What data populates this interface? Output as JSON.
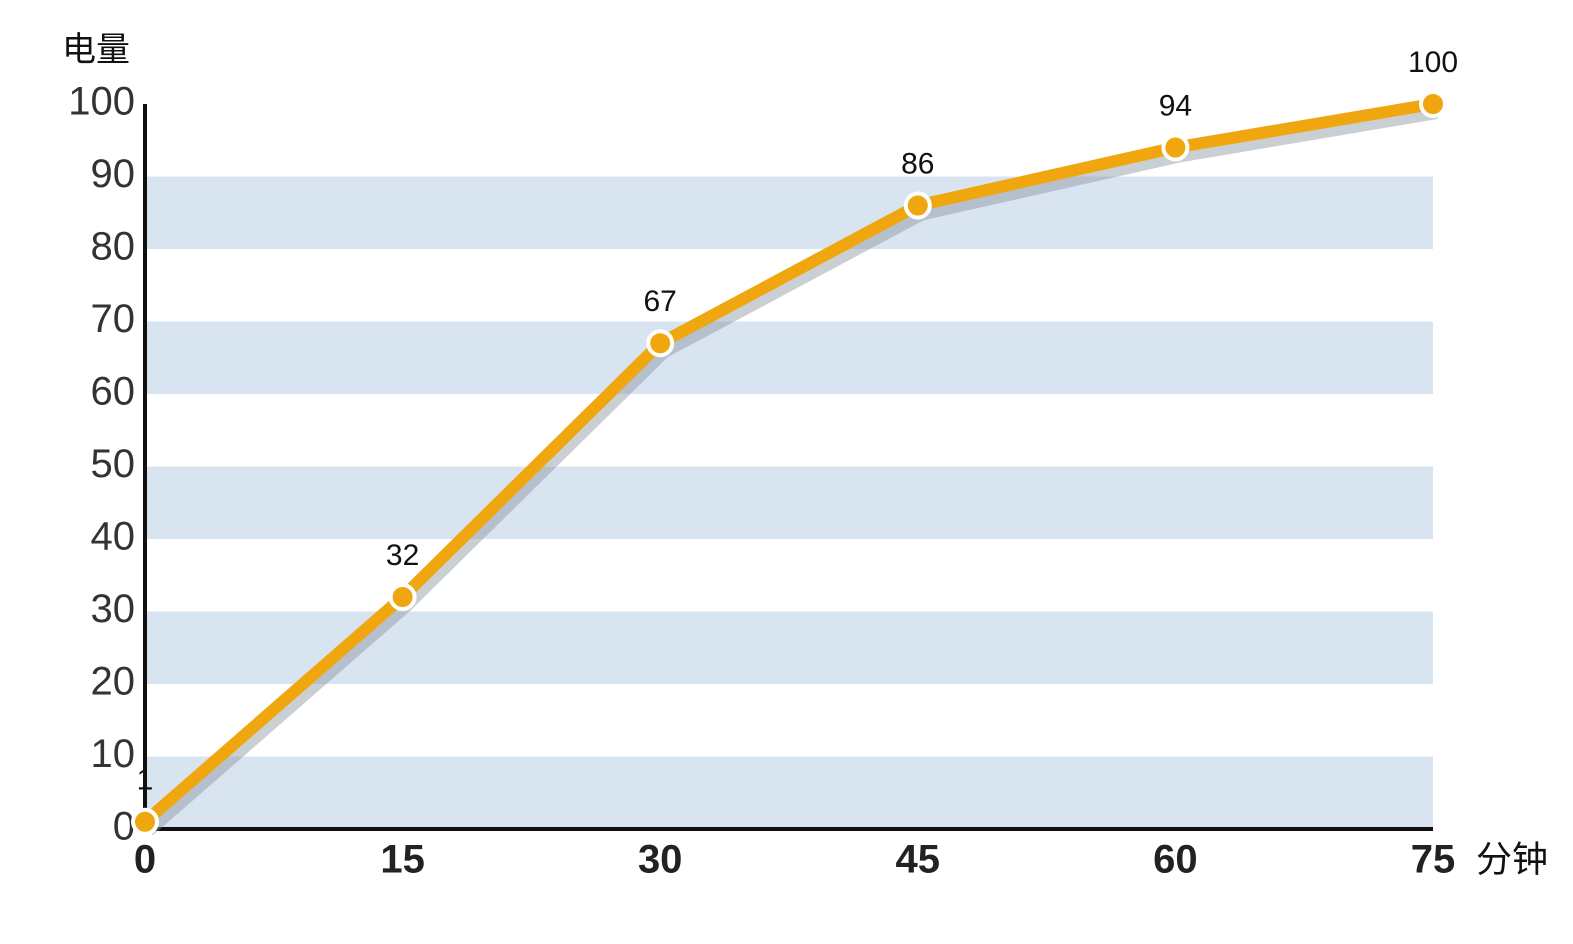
{
  "chart_data": {
    "type": "line",
    "y_label": "电量",
    "x_label": "分钟",
    "x": [
      0,
      15,
      30,
      45,
      60,
      75
    ],
    "series": [
      {
        "color": "#f0a70f",
        "values": [
          1,
          32,
          67,
          86,
          94,
          100
        ]
      }
    ],
    "xlim": [
      0,
      75
    ],
    "xticks": [
      0,
      15,
      30,
      45,
      60,
      75
    ],
    "ylim": [
      0,
      100
    ],
    "yticks": [
      0,
      10,
      20,
      30,
      40,
      50,
      60,
      70,
      80,
      90,
      100
    ],
    "band_color": "#d9e4f1",
    "data_labels": true
  }
}
